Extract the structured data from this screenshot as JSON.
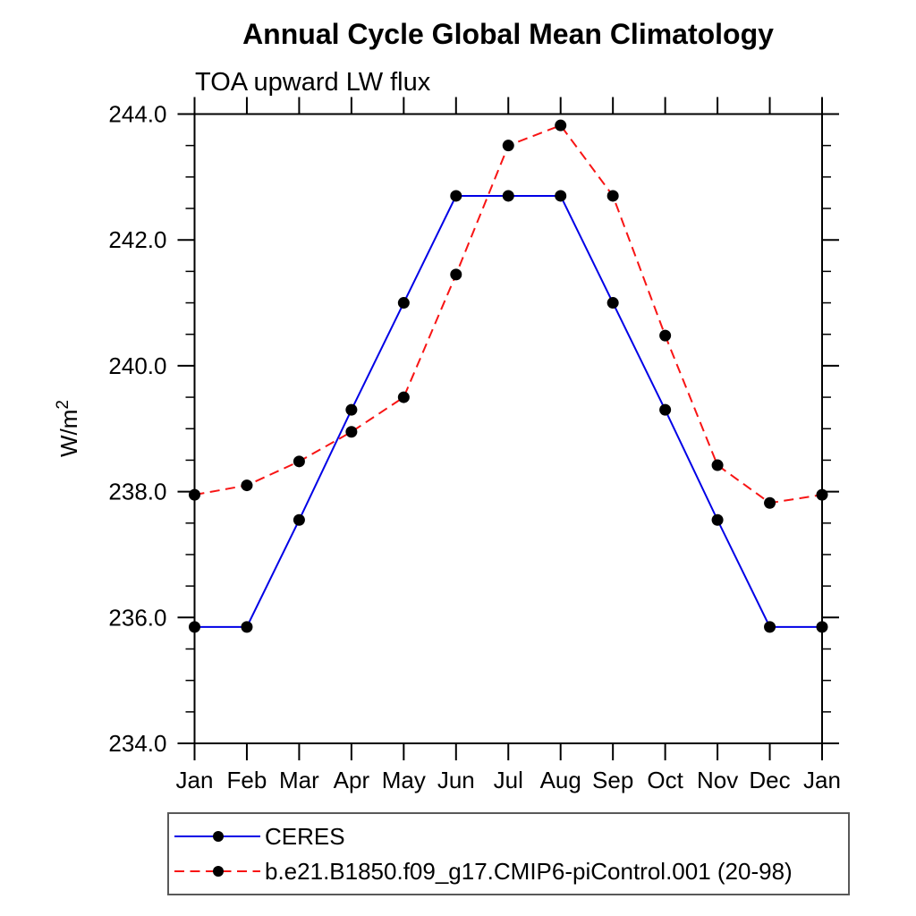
{
  "chart_data": {
    "type": "line",
    "title": "Annual Cycle Global Mean Climatology",
    "subtitle": "TOA upward LW flux",
    "ylabel": "W/m²",
    "ylabel_base": "W/m",
    "ylabel_superscript": "2",
    "xlabel": "",
    "categories": [
      "Jan",
      "Feb",
      "Mar",
      "Apr",
      "May",
      "Jun",
      "Jul",
      "Aug",
      "Sep",
      "Oct",
      "Nov",
      "Dec",
      "Jan"
    ],
    "ylim": [
      234.0,
      244.0
    ],
    "ytick_major_step": 2.0,
    "ytick_minor_step": 0.5,
    "ytick_labels": [
      "234.0",
      "236.0",
      "238.0",
      "240.0",
      "242.0",
      "244.0"
    ],
    "grid": false,
    "legend_position": "bottom",
    "axis_color": "#000000",
    "marker_color": "#000000",
    "series": [
      {
        "name": "CERES",
        "color": "#0000e6",
        "style": "solid",
        "marker": "filled-circle",
        "values": [
          235.85,
          235.85,
          237.55,
          239.3,
          241.0,
          242.7,
          242.7,
          242.7,
          241.0,
          239.3,
          237.55,
          235.85,
          235.85
        ]
      },
      {
        "name": "b.e21.B1850.f09_g17.CMIP6-piControl.001 (20-98)",
        "color": "#f81414",
        "style": "dashed",
        "marker": "filled-circle",
        "values": [
          237.95,
          238.1,
          238.48,
          238.95,
          239.5,
          241.45,
          243.5,
          243.82,
          242.7,
          240.48,
          238.42,
          237.82,
          237.95
        ]
      }
    ]
  }
}
